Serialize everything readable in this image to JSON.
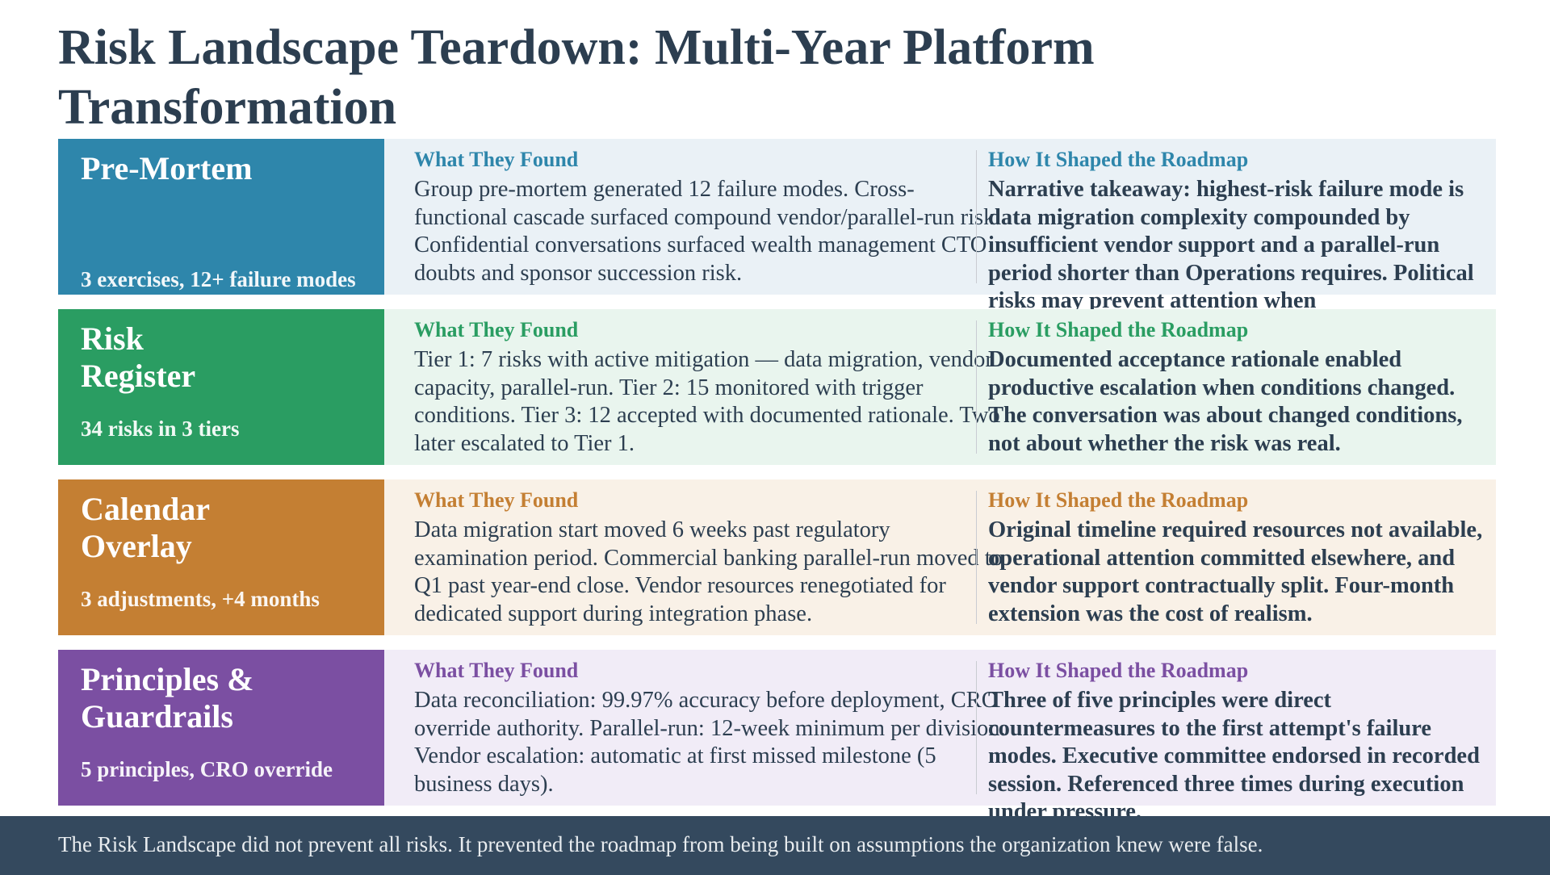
{
  "title": "Risk Landscape Teardown: Multi-Year Platform Transformation",
  "column_heads": {
    "found": "What They Found",
    "roadmap": "How It Shaped the Roadmap"
  },
  "rows": [
    {
      "name": "Pre-Mortem",
      "sub": "3 exercises, 12+ failure modes",
      "found": "Group pre-mortem generated 12 failure modes. Cross-functional cascade surfaced compound vendor/parallel-run risk. Confidential conversations surfaced wealth management CTO doubts and sponsor succession risk.",
      "roadmap": "Narrative takeaway: highest-risk failure mode is data migration complexity compounded by insufficient vendor support and a parallel-run period shorter than Operations requires. Political risks may prevent attention when",
      "accent": "#2e86ab",
      "band": "#eaf1f6",
      "head_color": "#2e86ab"
    },
    {
      "name": "Risk Register",
      "sub": "34 risks in 3 tiers",
      "found": "Tier 1: 7 risks with active mitigation — data migration, vendor capacity, parallel-run. Tier 2: 15 monitored with trigger conditions. Tier 3: 12 accepted with documented rationale. Two later escalated to Tier 1.",
      "roadmap": "Documented acceptance rationale enabled productive escalation when conditions changed. The conversation was about changed conditions, not about whether the risk was real.",
      "accent": "#2a9d62",
      "band": "#e9f5ee",
      "head_color": "#2a9d62"
    },
    {
      "name": "Calendar Overlay",
      "sub": "3 adjustments, +4 months",
      "found": "Data migration start moved 6 weeks past regulatory examination period. Commercial banking parallel-run moved to Q1 past year-end close. Vendor resources renegotiated for dedicated support during integration phase.",
      "roadmap": "Original timeline required resources not available, operational attention committed elsewhere, and vendor support contractually split. Four-month extension was the cost of realism.",
      "accent": "#c47f33",
      "band": "#f9f1e7",
      "head_color": "#c47f33"
    },
    {
      "name": "Principles & Guardrails",
      "sub": "5 principles, CRO override",
      "found": "Data reconciliation: 99.97% accuracy before deployment, CRO override authority. Parallel-run: 12-week minimum per division. Vendor escalation: automatic at first missed milestone (5 business days).",
      "roadmap": "Three of five principles were direct countermeasures to the first attempt's failure modes. Executive committee endorsed in recorded session. Referenced three times during execution under pressure.",
      "accent": "#7b4fa2",
      "band": "#f1ecf7",
      "head_color": "#7b4fa2"
    }
  ],
  "footer": "The Risk Landscape did not prevent all risks. It prevented the roadmap from being built on assumptions the organization knew were false."
}
